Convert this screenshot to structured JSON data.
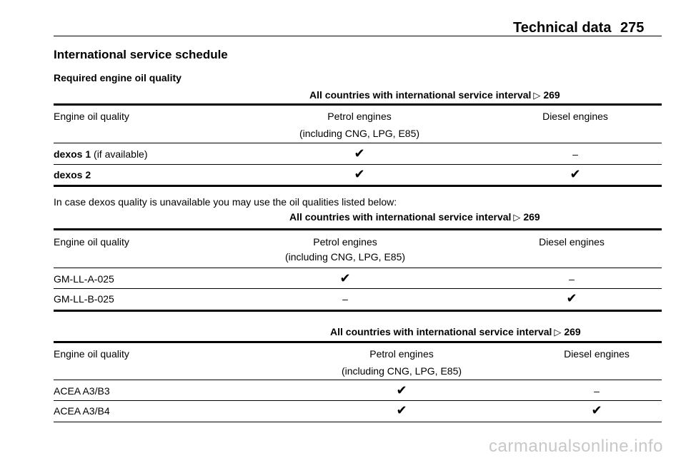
{
  "header": {
    "title": "Technical data",
    "page_number": "275"
  },
  "heading": "International service schedule",
  "subheading": "Required engine oil quality",
  "intro_text": "In case dexos quality is unavailable you may use the oil qualities listed below:",
  "tables": [
    {
      "caption": "All countries with international service interval",
      "caption_ref": "269",
      "headers": [
        "Engine oil quality",
        "Petrol engines",
        "(including CNG, LPG, E85)",
        "Diesel engines"
      ],
      "rows": [
        {
          "name": "dexos 1",
          "note": " (if available)",
          "petrol": "✔",
          "diesel": "–"
        },
        {
          "name": "dexos 2",
          "note": "",
          "petrol": "✔",
          "diesel": "✔"
        }
      ]
    },
    {
      "caption": "All countries with international service interval",
      "caption_ref": "269",
      "headers": [
        "Engine oil quality",
        "Petrol engines",
        "(including CNG, LPG, E85)",
        "Diesel engines"
      ],
      "rows": [
        {
          "name": "GM-LL-A-025",
          "petrol": "✔",
          "diesel": "–"
        },
        {
          "name": "GM-LL-B-025",
          "petrol": "–",
          "diesel": "✔"
        }
      ]
    },
    {
      "caption": "All countries with international service interval",
      "caption_ref": "269",
      "headers": [
        "Engine oil quality",
        "Petrol engines",
        "(including CNG, LPG, E85)",
        "Diesel engines"
      ],
      "rows": [
        {
          "name": "ACEA A3/B3",
          "petrol": "✔",
          "diesel": "–"
        },
        {
          "name": "ACEA A3/B4",
          "petrol": "✔",
          "diesel": "✔"
        }
      ]
    }
  ],
  "watermark": "carmanualsonline.info"
}
